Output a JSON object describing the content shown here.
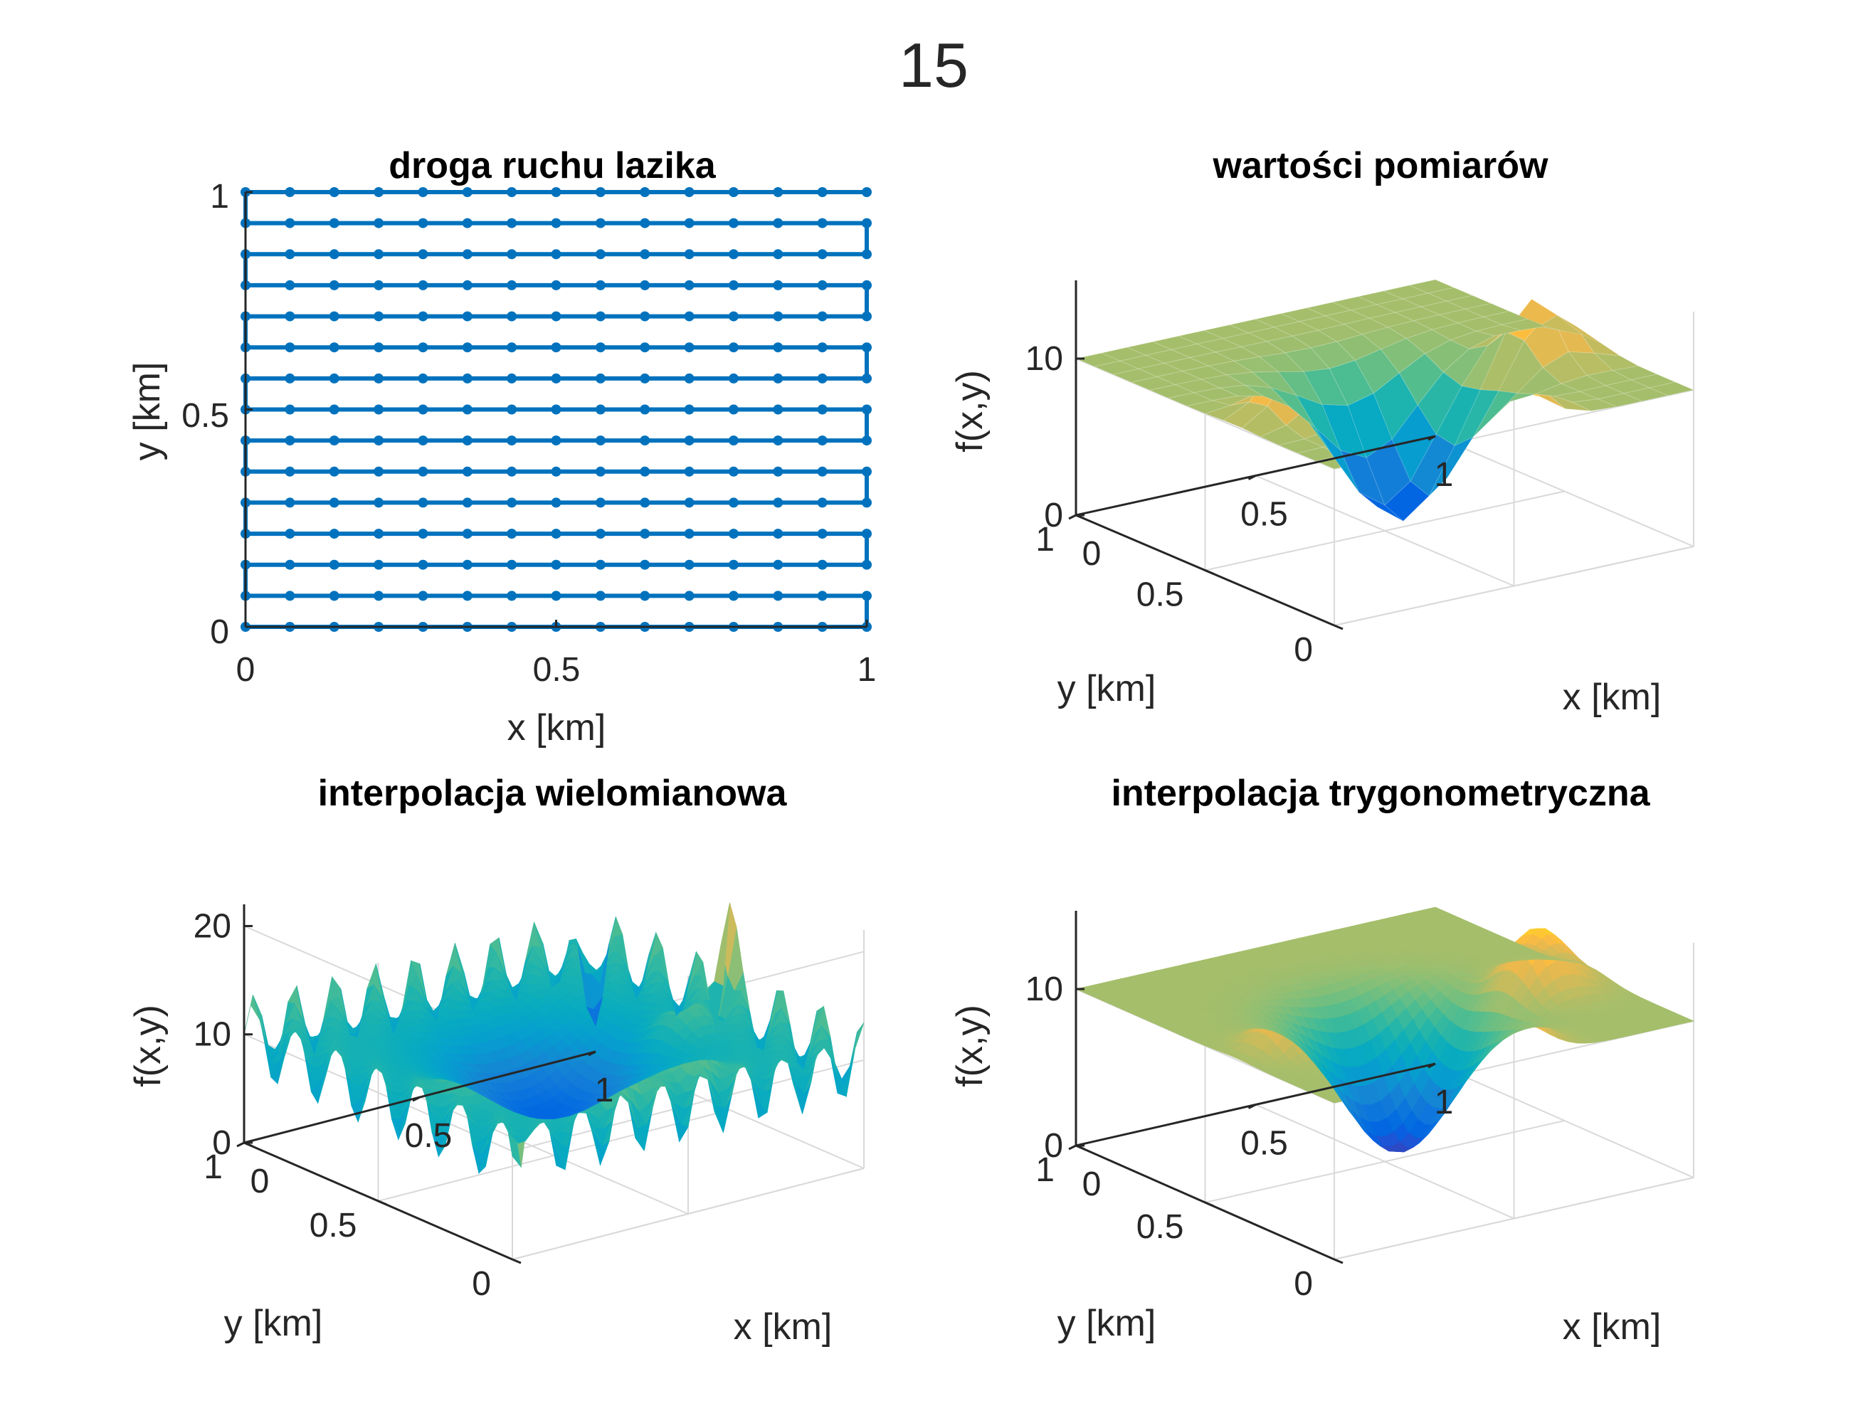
{
  "figure": {
    "suptitle": "15"
  },
  "colors": {
    "path_line": "#0072bd",
    "axis": "#262626",
    "grid": "#d9d9d9",
    "surface_colormap": "parula"
  },
  "chart_data": [
    {
      "type": "line",
      "title": "droga ruchu lazika",
      "xlabel": "x [km]",
      "ylabel": "y [km]",
      "xlim": [
        0,
        1
      ],
      "ylim": [
        0,
        1
      ],
      "xticks": [
        "0",
        "0.5",
        "1"
      ],
      "yticks": [
        "0",
        "0.5",
        "1"
      ],
      "grid_points_per_axis": 15,
      "path": "snake (boustrophedon) over a 15 x 15 grid of measurement points",
      "marker": "dot"
    },
    {
      "type": "surface",
      "title": "wartości pomiarów",
      "xlabel": "x [km]",
      "ylabel": "y [km]",
      "zlabel": "f(x,y)",
      "xlim": [
        0,
        1
      ],
      "ylim": [
        0,
        1
      ],
      "zlim": [
        0,
        15
      ],
      "xticks": [
        "0",
        "0.5",
        "1"
      ],
      "yticks": [
        "0",
        "0.5",
        "1"
      ],
      "zticks": [
        "0",
        "10"
      ],
      "base_level": 10,
      "min_value": 0,
      "max_value": 15,
      "style": "faceted"
    },
    {
      "type": "surface",
      "title": "interpolacja wielomianowa",
      "xlabel": "x [km]",
      "ylabel": "y [km]",
      "zlabel": "f(x,y)",
      "xlim": [
        0,
        1
      ],
      "ylim": [
        0,
        1
      ],
      "zlim": [
        0,
        22
      ],
      "xticks": [
        "0",
        "0.5",
        "1"
      ],
      "yticks": [
        "0",
        "0.5",
        "1"
      ],
      "zticks": [
        "0",
        "10",
        "20"
      ],
      "base_level": 10,
      "min_value": 0,
      "max_value": 22,
      "style": "smooth with edge oscillations"
    },
    {
      "type": "surface",
      "title": "interpolacja trygonometryczna",
      "xlabel": "x [km]",
      "ylabel": "y [km]",
      "zlabel": "f(x,y)",
      "xlim": [
        0,
        1
      ],
      "ylim": [
        0,
        1
      ],
      "zlim": [
        0,
        15
      ],
      "xticks": [
        "0",
        "0.5",
        "1"
      ],
      "yticks": [
        "0",
        "0.5",
        "1"
      ],
      "zticks": [
        "0",
        "10"
      ],
      "base_level": 10,
      "min_value": 0,
      "max_value": 15,
      "style": "smooth"
    }
  ]
}
